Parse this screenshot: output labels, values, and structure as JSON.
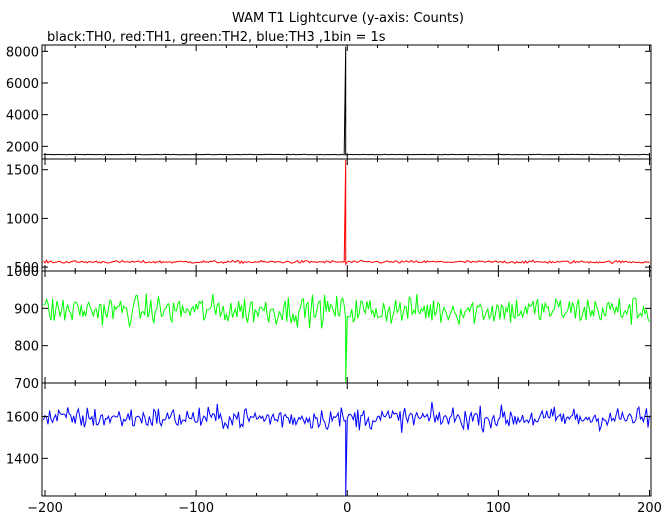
{
  "title": "WAM T1 Lightcurve (y-axis: Counts)",
  "subtitle": "black:TH0, red:TH1, green:TH2, blue:TH3 ,1bin = 1s",
  "chart_data": {
    "type": "line",
    "title": "WAM T1 Lightcurve (y-axis: Counts)",
    "subtitle": "black:TH0, red:TH1, green:TH2, blue:TH3 ,1bin = 1s",
    "x_ticks": [
      -200,
      -100,
      0,
      100,
      200
    ],
    "xlim": [
      -202,
      201
    ],
    "bin_seconds": 1,
    "grid": false,
    "series": [
      {
        "name": "TH0",
        "color": "#000000",
        "ylim": [
          1200,
          8400
        ],
        "y_ticks": [
          2000,
          4000,
          6000,
          8000
        ],
        "baseline": 1480,
        "noise": 12,
        "spike": {
          "x": -1,
          "peak": 8300,
          "min": 1450
        }
      },
      {
        "name": "TH1",
        "color": "#ff0000",
        "ylim": [
          460,
          1610
        ],
        "y_ticks": [
          500,
          1000,
          1500
        ],
        "baseline": 553,
        "noise": 10,
        "spike": {
          "x": -1,
          "peak": 1600,
          "min": 530
        }
      },
      {
        "name": "TH2",
        "color": "#00ff00",
        "ylim": [
          700,
          1000
        ],
        "y_ticks": [
          700,
          800,
          900,
          1000
        ],
        "baseline": 895,
        "noise": 28,
        "spike": {
          "x": -1,
          "peak": 870,
          "min": 702
        }
      },
      {
        "name": "TH3",
        "color": "#0000ff",
        "ylim": [
          1220,
          1760
        ],
        "y_ticks": [
          1400,
          1600
        ],
        "baseline": 1592,
        "noise": 38,
        "spike": {
          "x": -1,
          "peak": 1580,
          "min": 1222
        }
      }
    ]
  }
}
